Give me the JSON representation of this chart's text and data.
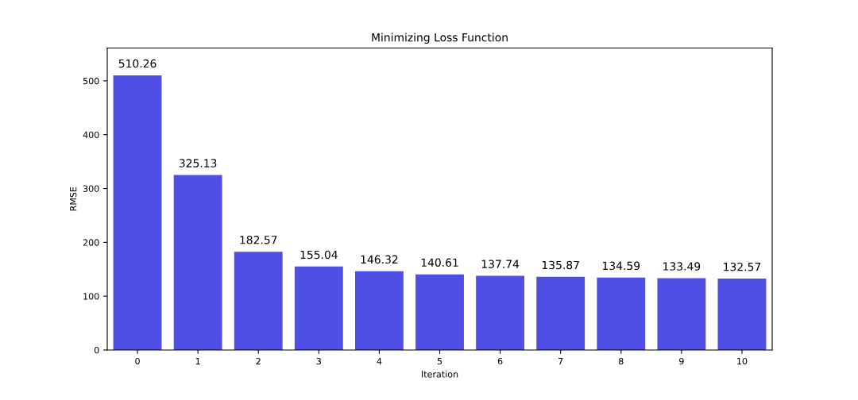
{
  "chart_data": {
    "type": "bar",
    "title": "Minimizing Loss Function",
    "xlabel": "Iteration",
    "ylabel": "RMSE",
    "categories": [
      "0",
      "1",
      "2",
      "3",
      "4",
      "5",
      "6",
      "7",
      "8",
      "9",
      "10"
    ],
    "values": [
      510.26,
      325.13,
      182.57,
      155.04,
      146.32,
      140.61,
      137.74,
      135.87,
      134.59,
      133.49,
      132.57
    ],
    "color": "#4f4fe6",
    "data_labels": true,
    "ylim": [
      0,
      561
    ],
    "yticks": [
      0,
      100,
      200,
      300,
      400,
      500
    ],
    "grid": false
  }
}
